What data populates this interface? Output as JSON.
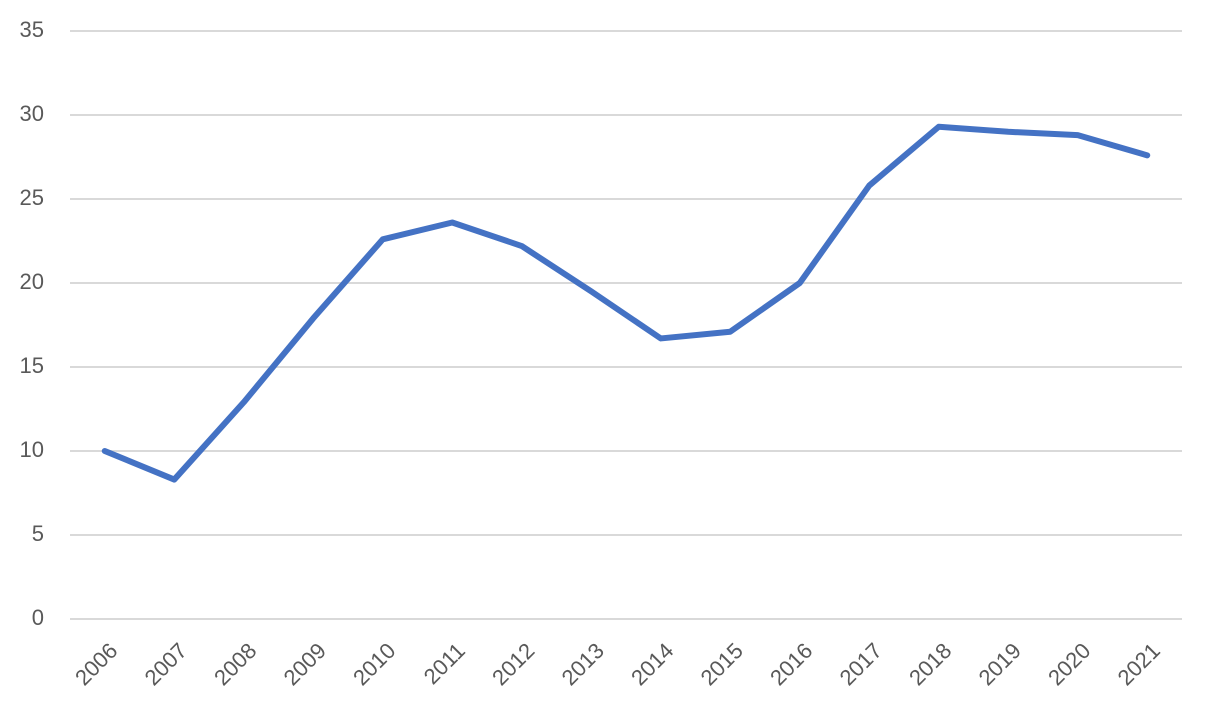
{
  "chart_data": {
    "type": "line",
    "categories": [
      "2006",
      "2007",
      "2008",
      "2009",
      "2010",
      "2011",
      "2012",
      "2013",
      "2014",
      "2015",
      "2016",
      "2017",
      "2018",
      "2019",
      "2020",
      "2021"
    ],
    "series": [
      {
        "color": "#4472c4",
        "values": [
          10.0,
          8.3,
          12.9,
          17.9,
          22.6,
          23.6,
          22.2,
          19.5,
          16.7,
          17.1,
          20.0,
          25.8,
          29.3,
          29.0,
          28.8,
          27.6
        ]
      }
    ],
    "ylim": [
      0,
      35
    ],
    "yticks": [
      0,
      5,
      10,
      15,
      20,
      25,
      30,
      35
    ],
    "grid": true
  }
}
